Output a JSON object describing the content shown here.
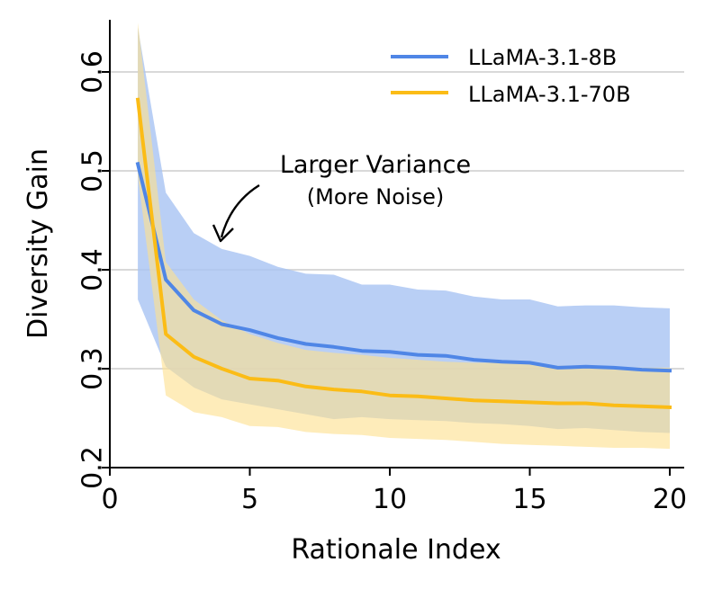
{
  "chart_data": {
    "type": "line",
    "xlabel": "Rationale Index",
    "ylabel": "Diversity Gain",
    "xlim": [
      0,
      20.5
    ],
    "ylim": [
      0.2,
      0.65
    ],
    "xticks": [
      0,
      5,
      10,
      15,
      20
    ],
    "xtick_labels": [
      "0",
      "5",
      "10",
      "15",
      "20"
    ],
    "yticks": [
      0.2,
      0.3,
      0.4,
      0.5,
      0.6
    ],
    "ytick_labels": [
      "0.2",
      "0.3",
      "0.4",
      "0.5",
      "0.6"
    ],
    "grid": "horizontal",
    "legend_position": "top-right",
    "x": [
      1,
      2,
      3,
      4,
      5,
      6,
      7,
      8,
      9,
      10,
      11,
      12,
      13,
      14,
      15,
      16,
      17,
      18,
      19,
      20
    ],
    "series": [
      {
        "name": "LLaMA-3.1-8B",
        "color": "#4f86e6",
        "band_color": "#a9c5f3",
        "values": [
          0.507,
          0.39,
          0.359,
          0.345,
          0.339,
          0.331,
          0.325,
          0.322,
          0.318,
          0.317,
          0.314,
          0.313,
          0.309,
          0.307,
          0.306,
          0.301,
          0.302,
          0.301,
          0.299,
          0.298
        ],
        "upper": [
          0.645,
          0.478,
          0.437,
          0.421,
          0.414,
          0.403,
          0.396,
          0.395,
          0.385,
          0.385,
          0.38,
          0.379,
          0.373,
          0.37,
          0.37,
          0.363,
          0.364,
          0.364,
          0.362,
          0.361
        ],
        "lower": [
          0.37,
          0.302,
          0.281,
          0.269,
          0.264,
          0.259,
          0.254,
          0.249,
          0.251,
          0.249,
          0.248,
          0.247,
          0.245,
          0.244,
          0.242,
          0.239,
          0.24,
          0.238,
          0.236,
          0.235
        ]
      },
      {
        "name": "LLaMA-3.1-70B",
        "color": "#fbbc16",
        "band_color": "#fde08f",
        "values": [
          0.572,
          0.335,
          0.312,
          0.3,
          0.29,
          0.288,
          0.282,
          0.279,
          0.277,
          0.273,
          0.272,
          0.27,
          0.268,
          0.267,
          0.266,
          0.265,
          0.265,
          0.263,
          0.262,
          0.261
        ],
        "upper": [
          0.65,
          0.408,
          0.37,
          0.349,
          0.335,
          0.326,
          0.319,
          0.316,
          0.314,
          0.311,
          0.309,
          0.307,
          0.306,
          0.306,
          0.305,
          0.303,
          0.303,
          0.302,
          0.301,
          0.301
        ],
        "lower": [
          0.495,
          0.273,
          0.256,
          0.251,
          0.242,
          0.241,
          0.236,
          0.234,
          0.233,
          0.23,
          0.229,
          0.228,
          0.226,
          0.224,
          0.223,
          0.222,
          0.221,
          0.22,
          0.22,
          0.219
        ]
      }
    ],
    "annotations": [
      {
        "line1": "Larger Variance",
        "line2": "(More Noise)",
        "arrow_to": [
          4.0,
          0.43
        ]
      }
    ]
  }
}
